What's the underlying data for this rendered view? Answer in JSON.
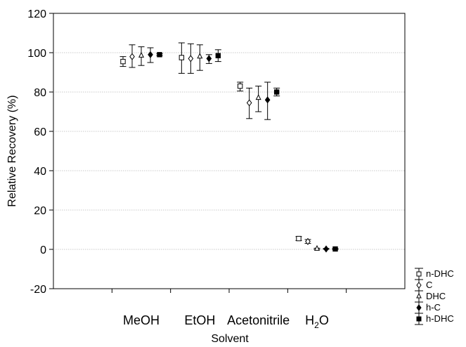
{
  "chart_data": {
    "type": "scatter",
    "title": "",
    "xlabel": "Solvent",
    "ylabel": "Relative Recovery (%)",
    "ylim": [
      -20,
      120
    ],
    "yticks": [
      -20,
      0,
      20,
      40,
      60,
      80,
      100,
      120
    ],
    "grid": true,
    "legend_position": "bottom-right outside",
    "categories": [
      "MeOH",
      "EtOH",
      "Acetonitrile",
      "H2O"
    ],
    "series": [
      {
        "name": "n-DHC",
        "marker": "square-open",
        "values": [
          95.5,
          97.5,
          83,
          5.5
        ],
        "lower": [
          93,
          89.5,
          80.5,
          4.5
        ],
        "upper": [
          98,
          105,
          85,
          6.5
        ]
      },
      {
        "name": "C",
        "marker": "diamond-open",
        "values": [
          98,
          97,
          74.5,
          4
        ],
        "lower": [
          92.5,
          89.5,
          66.5,
          3
        ],
        "upper": [
          104,
          104.5,
          82,
          5
        ]
      },
      {
        "name": "DHC",
        "marker": "triangle-open",
        "values": [
          98.5,
          98,
          77,
          0.3
        ],
        "lower": [
          93.5,
          91,
          70,
          0
        ],
        "upper": [
          103,
          104,
          83,
          0.6
        ]
      },
      {
        "name": "h-C",
        "marker": "diamond-filled",
        "values": [
          99,
          97,
          76,
          0.2
        ],
        "lower": [
          95,
          94.5,
          66,
          0
        ],
        "upper": [
          102.5,
          99,
          85,
          0.5
        ]
      },
      {
        "name": "h-DHC",
        "marker": "square-filled",
        "values": [
          99,
          98.5,
          80,
          0.2
        ],
        "lower": [
          98.5,
          95.5,
          78,
          0
        ],
        "upper": [
          99.5,
          101.5,
          82,
          0.4
        ]
      }
    ],
    "legend": [
      "n-DHC",
      "C",
      "DHC",
      "h-C",
      "h-DHC"
    ]
  }
}
